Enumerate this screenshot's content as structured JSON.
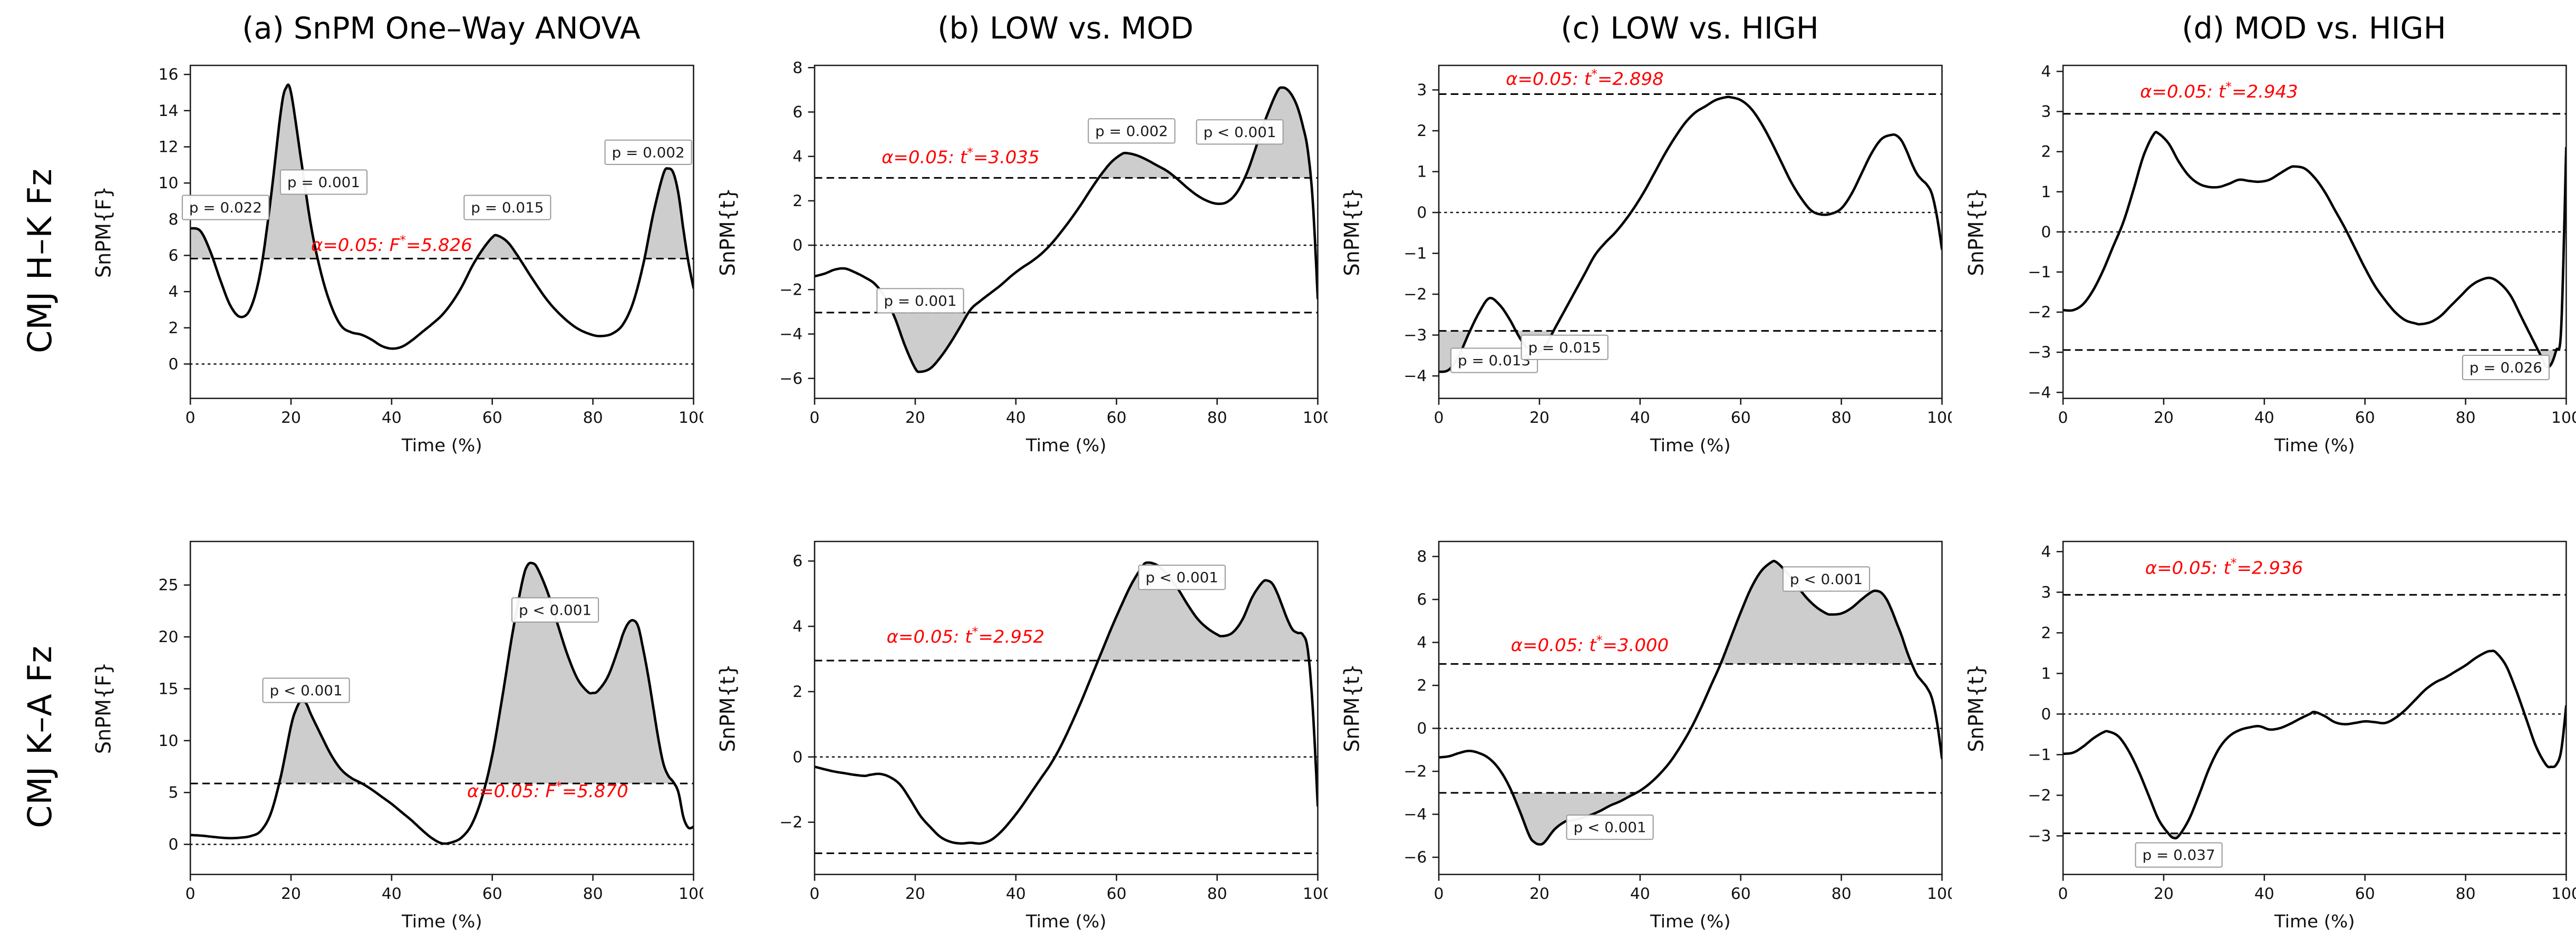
{
  "figure": {
    "curve_color": "#000000",
    "shade_color": "#cdcdcd",
    "alpha_color": "#ff0000",
    "pbox_border": "#9b9b9b",
    "pbox_fill": "#ffffff",
    "axis_color": "#1a1a1a",
    "xlabel": "Time (%)"
  },
  "rows": [
    {
      "label": "CMJ H–K Fz"
    },
    {
      "label": "CMJ K–A Fz"
    }
  ],
  "chart_data": [
    {
      "type": "line",
      "title": "(a) SnPM One–Way ANOVA",
      "ylabel": "SnPM{F}",
      "xlabel": "Time (%)",
      "xlim": [
        0,
        100
      ],
      "xticks": [
        0,
        20,
        40,
        60,
        80,
        100
      ],
      "ylim": [
        -1.9,
        16.5
      ],
      "yticks": [
        0,
        2,
        4,
        6,
        8,
        10,
        12,
        14,
        16
      ],
      "threshold": 5.826,
      "two_sided": false,
      "alpha_label": {
        "x": 40,
        "y": 6.25,
        "prefix": "α=0.05:  ",
        "stat": "F",
        "star": "*",
        "value": "=5.826"
      },
      "p_labels": [
        {
          "text": "p = 0.022",
          "x": 7.0,
          "y": 8.65
        },
        {
          "text": "p = 0.001",
          "x": 26.5,
          "y": 10.05
        },
        {
          "text": "p = 0.015",
          "x": 63.0,
          "y": 8.65
        },
        {
          "text": "p = 0.002",
          "x": 91.0,
          "y": 11.7
        }
      ],
      "x": [
        0,
        2,
        4,
        6,
        8,
        10,
        12,
        14,
        16,
        18,
        19,
        20,
        22,
        24,
        26,
        28,
        30,
        32,
        34,
        36,
        38,
        40,
        42,
        44,
        46,
        48,
        50,
        52,
        54,
        56,
        58,
        60,
        61,
        63,
        65,
        68,
        71,
        74,
        77,
        80,
        82,
        84,
        86,
        88,
        90,
        92,
        94,
        95,
        96,
        97,
        98,
        99,
        100
      ],
      "y": [
        7.5,
        7.35,
        6.2,
        4.6,
        3.2,
        2.6,
        3.1,
        5.2,
        9.2,
        14.0,
        15.25,
        15.0,
        11.3,
        7.6,
        5.0,
        3.2,
        2.1,
        1.75,
        1.62,
        1.35,
        1.0,
        0.85,
        0.95,
        1.3,
        1.75,
        2.2,
        2.7,
        3.4,
        4.3,
        5.4,
        6.3,
        7.0,
        7.1,
        6.75,
        6.0,
        4.7,
        3.5,
        2.6,
        1.95,
        1.6,
        1.55,
        1.7,
        2.2,
        3.4,
        5.5,
        8.3,
        10.5,
        10.8,
        10.55,
        9.4,
        7.4,
        5.6,
        4.2
      ]
    },
    {
      "type": "line",
      "title": "(b) LOW vs. MOD",
      "ylabel": "SnPM{t}",
      "xlabel": "Time (%)",
      "xlim": [
        0,
        100
      ],
      "xticks": [
        0,
        20,
        40,
        60,
        80,
        100
      ],
      "ylim": [
        -6.9,
        8.1
      ],
      "yticks": [
        -6,
        -4,
        -2,
        0,
        2,
        4,
        6,
        8
      ],
      "threshold": 3.035,
      "two_sided": true,
      "alpha_label": {
        "x": 29,
        "y": 3.7,
        "prefix": "α=0.05:  ",
        "stat": "t",
        "star": "*",
        "value": "=3.035"
      },
      "p_labels": [
        {
          "text": "p = 0.001",
          "x": 21.0,
          "y": -2.5
        },
        {
          "text": "p = 0.002",
          "x": 63.0,
          "y": 5.15
        },
        {
          "text": "p < 0.001",
          "x": 84.5,
          "y": 5.1
        }
      ],
      "x": [
        0,
        2,
        4,
        6,
        8,
        10,
        12,
        14,
        16,
        18,
        20,
        21,
        23,
        25,
        27,
        29,
        31,
        33,
        35,
        37,
        39,
        41,
        43,
        45,
        47,
        49,
        51,
        53,
        55,
        57,
        59,
        61,
        62,
        64,
        66,
        68,
        70,
        72,
        74,
        76,
        78,
        80,
        82,
        84,
        86,
        88,
        90,
        92,
        93,
        94,
        95,
        96,
        97,
        98,
        99,
        100
      ],
      "y": [
        -1.4,
        -1.28,
        -1.1,
        -1.05,
        -1.22,
        -1.45,
        -1.75,
        -2.35,
        -3.3,
        -4.55,
        -5.55,
        -5.7,
        -5.55,
        -5.05,
        -4.4,
        -3.65,
        -2.9,
        -2.5,
        -2.15,
        -1.8,
        -1.4,
        -1.05,
        -0.75,
        -0.4,
        0.05,
        0.6,
        1.2,
        1.85,
        2.55,
        3.2,
        3.75,
        4.1,
        4.15,
        4.05,
        3.85,
        3.6,
        3.35,
        3.0,
        2.6,
        2.25,
        2.0,
        1.87,
        1.95,
        2.4,
        3.3,
        4.6,
        5.9,
        6.95,
        7.1,
        7.0,
        6.7,
        6.2,
        5.4,
        4.3,
        2.0,
        -2.4
      ]
    },
    {
      "type": "line",
      "title": "(c) LOW vs. HIGH",
      "ylabel": "SnPM{t}",
      "xlabel": "Time (%)",
      "xlim": [
        0,
        100
      ],
      "xticks": [
        0,
        20,
        40,
        60,
        80,
        100
      ],
      "ylim": [
        -4.55,
        3.6
      ],
      "yticks": [
        -4,
        -3,
        -2,
        -1,
        0,
        1,
        2,
        3
      ],
      "threshold": 2.898,
      "two_sided": true,
      "alpha_label": {
        "x": 29,
        "y": 3.12,
        "prefix": "α=0.05:  ",
        "stat": "t",
        "star": "*",
        "value": "=2.898"
      },
      "p_labels": [
        {
          "text": "p = 0.013",
          "x": 11.0,
          "y": -3.62
        },
        {
          "text": "p = 0.015",
          "x": 25.0,
          "y": -3.3
        }
      ],
      "x": [
        0,
        2,
        4,
        6,
        8,
        10,
        12,
        14,
        16,
        18,
        19,
        21,
        23,
        25,
        27,
        29,
        31,
        33,
        35,
        37,
        39,
        41,
        43,
        45,
        47,
        49,
        51,
        53,
        55,
        57,
        58,
        60,
        62,
        64,
        66,
        68,
        70,
        72,
        74,
        76,
        78,
        80,
        82,
        84,
        86,
        88,
        90,
        91,
        92,
        93,
        94,
        95,
        96,
        97,
        98,
        99,
        100
      ],
      "y": [
        -3.9,
        -3.85,
        -3.5,
        -2.95,
        -2.45,
        -2.1,
        -2.25,
        -2.6,
        -3.05,
        -3.4,
        -3.45,
        -3.3,
        -2.85,
        -2.4,
        -1.95,
        -1.5,
        -1.05,
        -0.75,
        -0.5,
        -0.2,
        0.15,
        0.55,
        1.0,
        1.45,
        1.85,
        2.2,
        2.45,
        2.6,
        2.75,
        2.82,
        2.82,
        2.75,
        2.55,
        2.2,
        1.75,
        1.25,
        0.75,
        0.35,
        0.05,
        -0.05,
        -0.03,
        0.1,
        0.45,
        0.95,
        1.45,
        1.8,
        1.9,
        1.88,
        1.75,
        1.5,
        1.2,
        0.95,
        0.8,
        0.68,
        0.45,
        -0.1,
        -0.9
      ]
    },
    {
      "type": "line",
      "title": "(d) MOD vs. HIGH",
      "ylabel": "SnPM{t}",
      "xlabel": "Time (%)",
      "xlim": [
        0,
        100
      ],
      "xticks": [
        0,
        20,
        40,
        60,
        80,
        100
      ],
      "ylim": [
        -4.15,
        4.15
      ],
      "yticks": [
        -4,
        -3,
        -2,
        -1,
        0,
        1,
        2,
        3,
        4
      ],
      "threshold": 2.943,
      "two_sided": true,
      "alpha_label": {
        "x": 31,
        "y": 3.35,
        "prefix": "α=0.05:  ",
        "stat": "t",
        "star": "*",
        "value": "=2.943"
      },
      "p_labels": [
        {
          "text": "p = 0.026",
          "x": 88.0,
          "y": -3.38
        }
      ],
      "x": [
        0,
        2,
        4,
        6,
        8,
        10,
        12,
        14,
        16,
        18,
        19,
        21,
        23,
        25,
        27,
        29,
        31,
        33,
        35,
        37,
        39,
        41,
        43,
        45,
        46,
        48,
        50,
        52,
        54,
        56,
        58,
        60,
        62,
        64,
        66,
        68,
        70,
        71,
        73,
        75,
        77,
        79,
        81,
        83,
        85,
        87,
        89,
        91,
        93,
        95,
        96,
        97,
        98,
        99,
        100
      ],
      "y": [
        -1.95,
        -1.95,
        -1.8,
        -1.45,
        -0.95,
        -0.35,
        0.25,
        1.05,
        1.9,
        2.43,
        2.45,
        2.2,
        1.75,
        1.4,
        1.2,
        1.12,
        1.12,
        1.2,
        1.3,
        1.27,
        1.25,
        1.3,
        1.45,
        1.6,
        1.63,
        1.58,
        1.35,
        1.0,
        0.55,
        0.1,
        -0.4,
        -0.9,
        -1.35,
        -1.7,
        -2.0,
        -2.2,
        -2.28,
        -2.3,
        -2.25,
        -2.1,
        -1.85,
        -1.6,
        -1.35,
        -1.2,
        -1.15,
        -1.3,
        -1.6,
        -2.1,
        -2.6,
        -3.1,
        -3.35,
        -3.3,
        -2.95,
        -2.4,
        2.1
      ]
    },
    {
      "type": "line",
      "title": "",
      "ylabel": "SnPM{F}",
      "xlabel": "Time (%)",
      "xlim": [
        0,
        100
      ],
      "xticks": [
        0,
        20,
        40,
        60,
        80,
        100
      ],
      "ylim": [
        -2.9,
        29.2
      ],
      "yticks": [
        0,
        5,
        10,
        15,
        20,
        25
      ],
      "threshold": 5.87,
      "two_sided": false,
      "alpha_label": {
        "x": 71,
        "y": 4.55,
        "prefix": "α=0.05:  ",
        "stat": "F",
        "star": "*",
        "value": "=5.870"
      },
      "p_labels": [
        {
          "text": "p < 0.001",
          "x": 23.0,
          "y": 14.85
        },
        {
          "text": "p < 0.001",
          "x": 72.5,
          "y": 22.6
        }
      ],
      "x": [
        0,
        2,
        4,
        6,
        8,
        10,
        12,
        14,
        16,
        18,
        20,
        21,
        22,
        23,
        24,
        26,
        28,
        30,
        32,
        34,
        36,
        38,
        40,
        42,
        44,
        46,
        48,
        50,
        52,
        54,
        56,
        58,
        60,
        62,
        64,
        66,
        67,
        68,
        69,
        71,
        73,
        75,
        77,
        79,
        80,
        81,
        83,
        85,
        86,
        87,
        88,
        89,
        90,
        91,
        92,
        93,
        94,
        95,
        96,
        97,
        98,
        99,
        100
      ],
      "y": [
        0.9,
        0.85,
        0.75,
        0.65,
        0.6,
        0.65,
        0.8,
        1.3,
        3.0,
        6.6,
        11.4,
        13.0,
        13.85,
        13.6,
        12.5,
        10.5,
        8.6,
        7.2,
        6.4,
        5.9,
        5.3,
        4.6,
        3.9,
        3.1,
        2.3,
        1.4,
        0.6,
        0.1,
        0.2,
        0.7,
        2.0,
        4.6,
        8.6,
        14.2,
        20.3,
        25.4,
        26.9,
        27.1,
        26.6,
        24.3,
        21.2,
        18.2,
        15.9,
        14.7,
        14.6,
        14.8,
        16.2,
        18.8,
        20.3,
        21.3,
        21.6,
        21.0,
        18.8,
        16.2,
        13.2,
        10.2,
        7.8,
        6.6,
        6.0,
        5.0,
        2.6,
        1.6,
        1.7
      ]
    },
    {
      "type": "line",
      "title": "",
      "ylabel": "SnPM{t}",
      "xlabel": "Time (%)",
      "xlim": [
        0,
        100
      ],
      "xticks": [
        0,
        20,
        40,
        60,
        80,
        100
      ],
      "ylim": [
        -3.6,
        6.6
      ],
      "yticks": [
        -2,
        0,
        2,
        4,
        6
      ],
      "threshold": 2.952,
      "two_sided": true,
      "alpha_label": {
        "x": 30,
        "y": 3.5,
        "prefix": "α=0.05:  ",
        "stat": "t",
        "star": "*",
        "value": "=2.952"
      },
      "p_labels": [
        {
          "text": "p < 0.001",
          "x": 73.0,
          "y": 5.5
        }
      ],
      "x": [
        0,
        2,
        4,
        6,
        8,
        10,
        11,
        13,
        15,
        17,
        19,
        21,
        23,
        25,
        27,
        29,
        31,
        33,
        35,
        37,
        39,
        41,
        43,
        45,
        47,
        49,
        51,
        53,
        55,
        57,
        59,
        61,
        63,
        65,
        66,
        68,
        70,
        72,
        74,
        76,
        78,
        80,
        81,
        83,
        85,
        87,
        89,
        90,
        91,
        92,
        93,
        94,
        95,
        96,
        97,
        98,
        99,
        100
      ],
      "y": [
        -0.3,
        -0.38,
        -0.45,
        -0.5,
        -0.55,
        -0.58,
        -0.55,
        -0.52,
        -0.62,
        -0.85,
        -1.3,
        -1.8,
        -2.15,
        -2.45,
        -2.6,
        -2.65,
        -2.63,
        -2.65,
        -2.55,
        -2.3,
        -1.95,
        -1.55,
        -1.1,
        -0.65,
        -0.2,
        0.35,
        1.0,
        1.7,
        2.45,
        3.2,
        3.95,
        4.65,
        5.3,
        5.8,
        5.95,
        5.88,
        5.6,
        5.2,
        4.7,
        4.25,
        3.95,
        3.75,
        3.7,
        3.8,
        4.2,
        4.9,
        5.35,
        5.4,
        5.3,
        5.0,
        4.6,
        4.2,
        3.9,
        3.8,
        3.75,
        3.3,
        1.5,
        -1.5
      ]
    },
    {
      "type": "line",
      "title": "",
      "ylabel": "SnPM{t}",
      "xlabel": "Time (%)",
      "xlim": [
        0,
        100
      ],
      "xticks": [
        0,
        20,
        40,
        60,
        80,
        100
      ],
      "ylim": [
        -6.8,
        8.7
      ],
      "yticks": [
        -6,
        -4,
        -2,
        0,
        2,
        4,
        6,
        8
      ],
      "threshold": 3.0,
      "two_sided": true,
      "alpha_label": {
        "x": 30,
        "y": 3.6,
        "prefix": "α=0.05:  ",
        "stat": "t",
        "star": "*",
        "value": "=3.000"
      },
      "p_labels": [
        {
          "text": "p < 0.001",
          "x": 34.0,
          "y": -4.6
        },
        {
          "text": "p < 0.001",
          "x": 77.0,
          "y": 6.95
        }
      ],
      "x": [
        0,
        2,
        4,
        6,
        8,
        10,
        12,
        14,
        16,
        18,
        19,
        20,
        21,
        23,
        25,
        26,
        28,
        30,
        32,
        34,
        36,
        38,
        40,
        42,
        44,
        46,
        48,
        50,
        52,
        54,
        56,
        58,
        60,
        62,
        64,
        66,
        67,
        69,
        71,
        73,
        75,
        77,
        78,
        80,
        82,
        84,
        86,
        87,
        88,
        89,
        90,
        91,
        92,
        93,
        94,
        95,
        96,
        97,
        98,
        99,
        100
      ],
      "y": [
        -1.35,
        -1.3,
        -1.15,
        -1.05,
        -1.15,
        -1.4,
        -1.9,
        -2.7,
        -3.8,
        -5.0,
        -5.3,
        -5.4,
        -5.3,
        -4.7,
        -4.35,
        -4.3,
        -4.2,
        -4.05,
        -3.85,
        -3.6,
        -3.4,
        -3.15,
        -2.9,
        -2.55,
        -2.1,
        -1.55,
        -0.85,
        -0.05,
        0.9,
        1.95,
        3.0,
        4.2,
        5.4,
        6.5,
        7.3,
        7.72,
        7.75,
        7.3,
        6.7,
        6.1,
        5.65,
        5.35,
        5.3,
        5.35,
        5.6,
        6.0,
        6.35,
        6.4,
        6.3,
        6.0,
        5.5,
        4.9,
        4.3,
        3.6,
        3.0,
        2.5,
        2.2,
        1.9,
        1.4,
        0.3,
        -1.4
      ]
    },
    {
      "type": "line",
      "title": "",
      "ylabel": "SnPM{t}",
      "xlabel": "Time (%)",
      "xlim": [
        0,
        100
      ],
      "xticks": [
        0,
        20,
        40,
        60,
        80,
        100
      ],
      "ylim": [
        -3.95,
        4.25
      ],
      "yticks": [
        -3,
        -2,
        -1,
        0,
        1,
        2,
        3,
        4
      ],
      "threshold": 2.936,
      "two_sided": true,
      "alpha_label": {
        "x": 32,
        "y": 3.45,
        "prefix": "α=0.05:  ",
        "stat": "t",
        "star": "*",
        "value": "=2.936"
      },
      "p_labels": [
        {
          "text": "p = 0.037",
          "x": 23.0,
          "y": -3.47
        }
      ],
      "x": [
        0,
        2,
        4,
        6,
        8,
        9,
        11,
        13,
        15,
        17,
        19,
        21,
        22,
        23,
        25,
        27,
        29,
        31,
        33,
        35,
        37,
        39,
        41,
        43,
        45,
        47,
        49,
        50,
        52,
        54,
        56,
        58,
        60,
        62,
        64,
        66,
        68,
        70,
        72,
        74,
        76,
        78,
        80,
        82,
        84,
        85,
        86,
        88,
        90,
        92,
        94,
        96,
        97,
        98,
        99,
        100
      ],
      "y": [
        -0.98,
        -0.95,
        -0.8,
        -0.6,
        -0.45,
        -0.43,
        -0.55,
        -0.9,
        -1.4,
        -2.0,
        -2.6,
        -2.95,
        -3.05,
        -3.0,
        -2.6,
        -2.0,
        -1.35,
        -0.85,
        -0.55,
        -0.4,
        -0.33,
        -0.3,
        -0.38,
        -0.35,
        -0.25,
        -0.12,
        0.0,
        0.05,
        -0.05,
        -0.2,
        -0.25,
        -0.22,
        -0.18,
        -0.2,
        -0.22,
        -0.1,
        0.1,
        0.35,
        0.6,
        0.78,
        0.9,
        1.05,
        1.2,
        1.38,
        1.52,
        1.55,
        1.52,
        1.2,
        0.6,
        -0.1,
        -0.8,
        -1.25,
        -1.3,
        -1.25,
        -0.9,
        0.2
      ]
    }
  ]
}
